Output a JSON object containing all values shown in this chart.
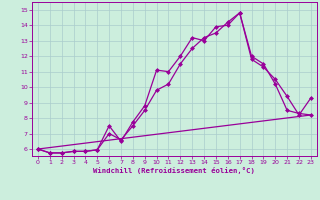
{
  "xlabel": "Windchill (Refroidissement éolien,°C)",
  "bg_color": "#cceedd",
  "grid_color": "#aacccc",
  "line_color": "#990099",
  "xlim": [
    -0.5,
    23.5
  ],
  "ylim": [
    5.55,
    15.5
  ],
  "xticks": [
    0,
    1,
    2,
    3,
    4,
    5,
    6,
    7,
    8,
    9,
    10,
    11,
    12,
    13,
    14,
    15,
    16,
    17,
    18,
    19,
    20,
    21,
    22,
    23
  ],
  "yticks": [
    6,
    7,
    8,
    9,
    10,
    11,
    12,
    13,
    14,
    15
  ],
  "line1_x": [
    0,
    1,
    2,
    3,
    4,
    5,
    6,
    7,
    8,
    9,
    10,
    11,
    12,
    13,
    14,
    15,
    16,
    17,
    18,
    19,
    20,
    21,
    22,
    23
  ],
  "line1_y": [
    6.0,
    5.75,
    5.75,
    5.85,
    5.85,
    5.95,
    7.5,
    6.5,
    7.75,
    8.8,
    11.1,
    11.0,
    12.0,
    13.2,
    13.0,
    13.9,
    14.0,
    14.8,
    11.8,
    11.3,
    10.5,
    9.4,
    8.2,
    9.3
  ],
  "line2_x": [
    0,
    1,
    2,
    3,
    4,
    5,
    6,
    7,
    8,
    9,
    10,
    11,
    12,
    13,
    14,
    15,
    16,
    17,
    18,
    19,
    20,
    21,
    22,
    23
  ],
  "line2_y": [
    6.0,
    5.75,
    5.75,
    5.85,
    5.85,
    5.95,
    7.0,
    6.6,
    7.5,
    8.5,
    9.8,
    10.2,
    11.5,
    12.5,
    13.2,
    13.5,
    14.2,
    14.8,
    12.0,
    11.5,
    10.2,
    8.5,
    8.3,
    8.2
  ],
  "line3_x": [
    0,
    23
  ],
  "line3_y": [
    6.0,
    8.2
  ],
  "font_color": "#990099",
  "marker": "D",
  "marker_size": 2.5,
  "linewidth": 0.9
}
